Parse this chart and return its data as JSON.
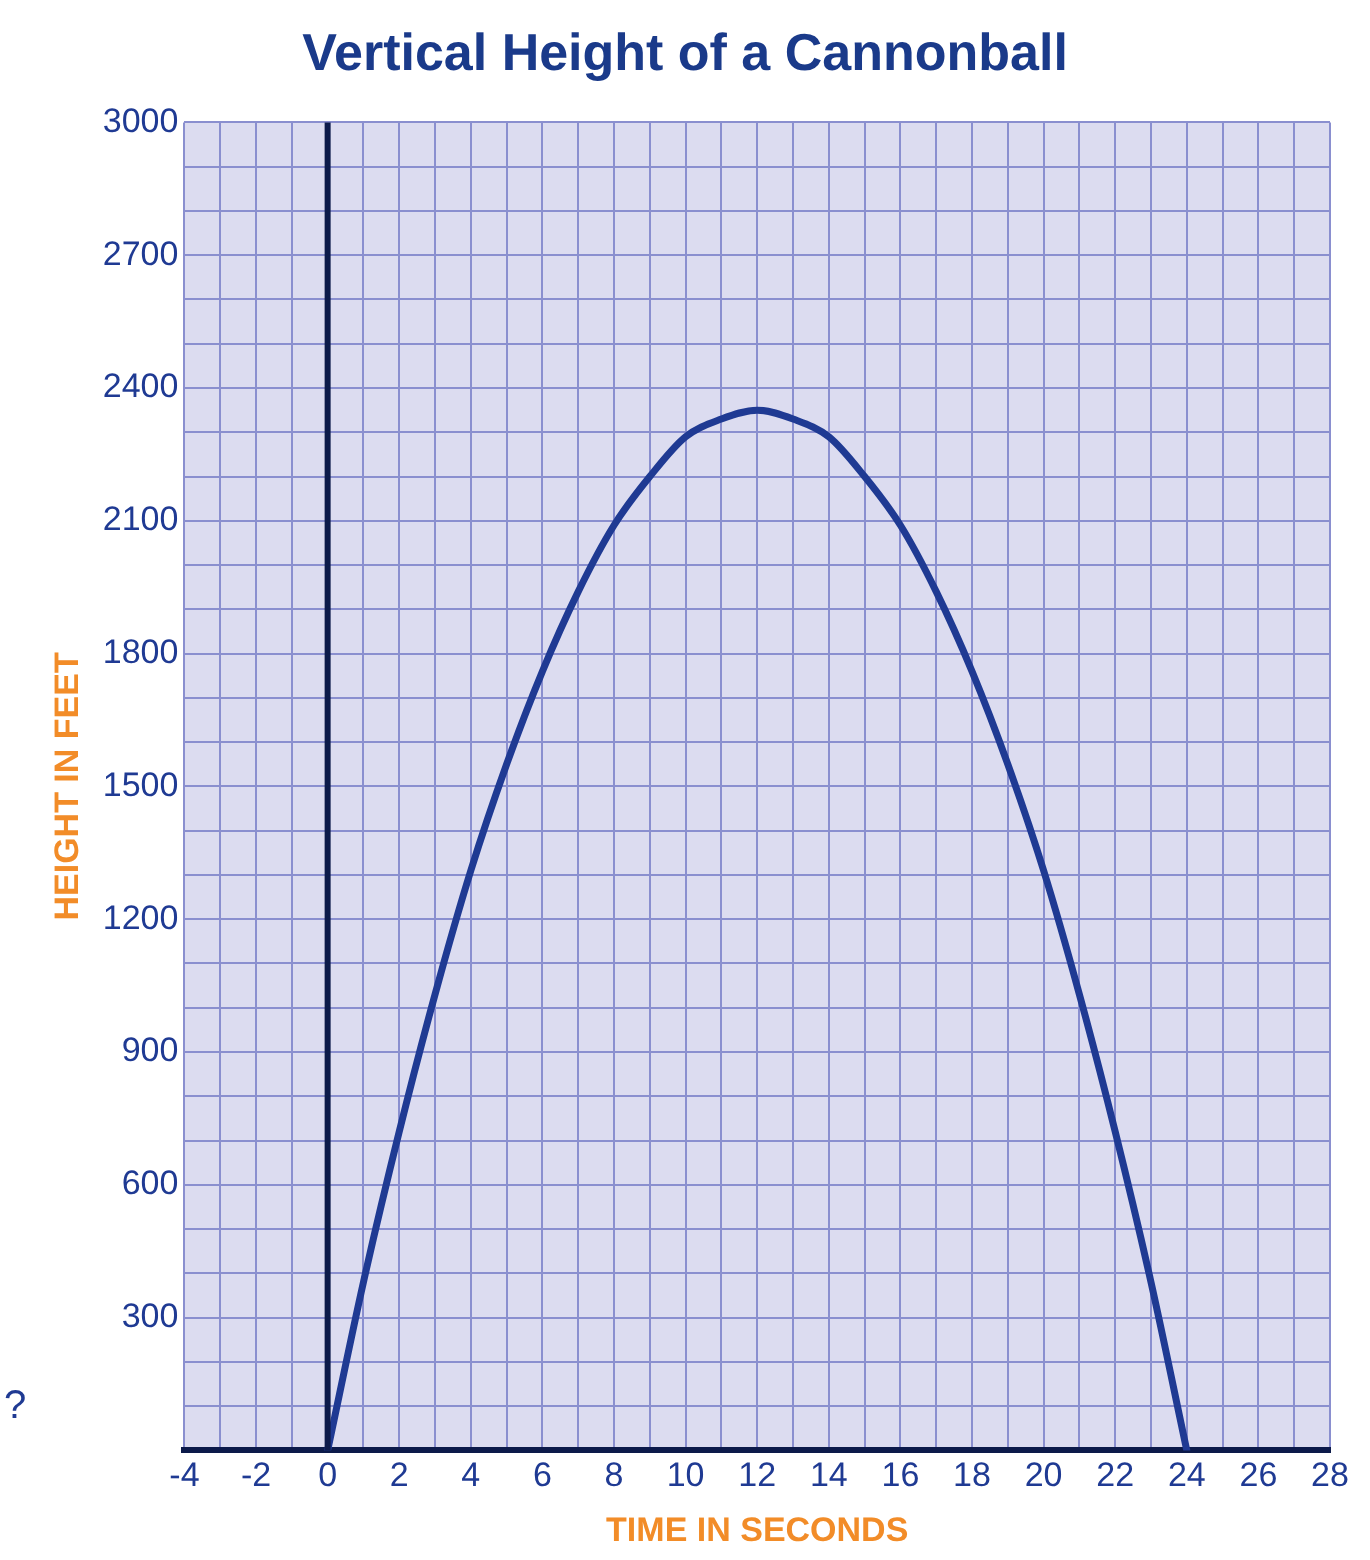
{
  "chart_data": {
    "type": "line",
    "title": "Vertical Height of a Cannonball",
    "xlabel": "TIME IN SECONDS",
    "ylabel": "HEIGHT IN FEET",
    "x": [
      0,
      1,
      2,
      3,
      4,
      5,
      6,
      7,
      8,
      9,
      10,
      11,
      12,
      13,
      14,
      15,
      16,
      17,
      18,
      19,
      20,
      21,
      22,
      23,
      24
    ],
    "series": [
      {
        "color": "#1f3a93",
        "values": [
          0,
          380,
          720,
          1030,
          1310,
          1550,
          1760,
          1940,
          2090,
          2200,
          2290,
          2330,
          2350,
          2330,
          2290,
          2200,
          2090,
          1940,
          1760,
          1550,
          1310,
          1030,
          720,
          380,
          0
        ]
      }
    ],
    "xlim": [
      -4,
      28
    ],
    "xticks": [
      -4,
      {
        "value": -3,
        "label": null
      },
      -2,
      {
        "value": -1,
        "label": null
      },
      0,
      {
        "value": 1,
        "label": null
      },
      2,
      {
        "value": 3,
        "label": null
      },
      4,
      {
        "value": 5,
        "label": null
      },
      6,
      {
        "value": 7,
        "label": null
      },
      8,
      {
        "value": 9,
        "label": null
      },
      10,
      {
        "value": 11,
        "label": null
      },
      12,
      {
        "value": 13,
        "label": null
      },
      14,
      {
        "value": 15,
        "label": null
      },
      16,
      {
        "value": 17,
        "label": null
      },
      18,
      {
        "value": 19,
        "label": null
      },
      20,
      {
        "value": 21,
        "label": null
      },
      22,
      {
        "value": 23,
        "label": null
      },
      24,
      {
        "value": 25,
        "label": null
      },
      26,
      {
        "value": 27,
        "label": null
      },
      28
    ],
    "ylim": [
      0,
      3000
    ],
    "yticks": [
      {
        "value": 0,
        "label": null
      },
      {
        "value": 100,
        "label": null
      },
      {
        "value": 200,
        "label": null
      },
      300,
      {
        "value": 400,
        "label": null
      },
      {
        "value": 500,
        "label": null
      },
      600,
      {
        "value": 700,
        "label": null
      },
      {
        "value": 800,
        "label": null
      },
      900,
      {
        "value": 1000,
        "label": null
      },
      {
        "value": 1100,
        "label": null
      },
      1200,
      {
        "value": 1300,
        "label": null
      },
      {
        "value": 1400,
        "label": null
      },
      1500,
      {
        "value": 1600,
        "label": null
      },
      {
        "value": 1700,
        "label": null
      },
      1800,
      {
        "value": 1900,
        "label": null
      },
      {
        "value": 2000,
        "label": null
      },
      2100,
      {
        "value": 2200,
        "label": null
      },
      {
        "value": 2300,
        "label": null
      },
      2400,
      {
        "value": 2500,
        "label": null
      },
      {
        "value": 2600,
        "label": null
      },
      2700,
      {
        "value": 2800,
        "label": null
      },
      {
        "value": 2900,
        "label": null
      },
      3000
    ],
    "ref_lines": [
      {
        "axis": "x",
        "value": 0,
        "color": "#0c1a4a"
      }
    ],
    "annotations": [
      "?"
    ],
    "grid": true,
    "legend": false,
    "marker": "none",
    "line_style": "solid"
  }
}
